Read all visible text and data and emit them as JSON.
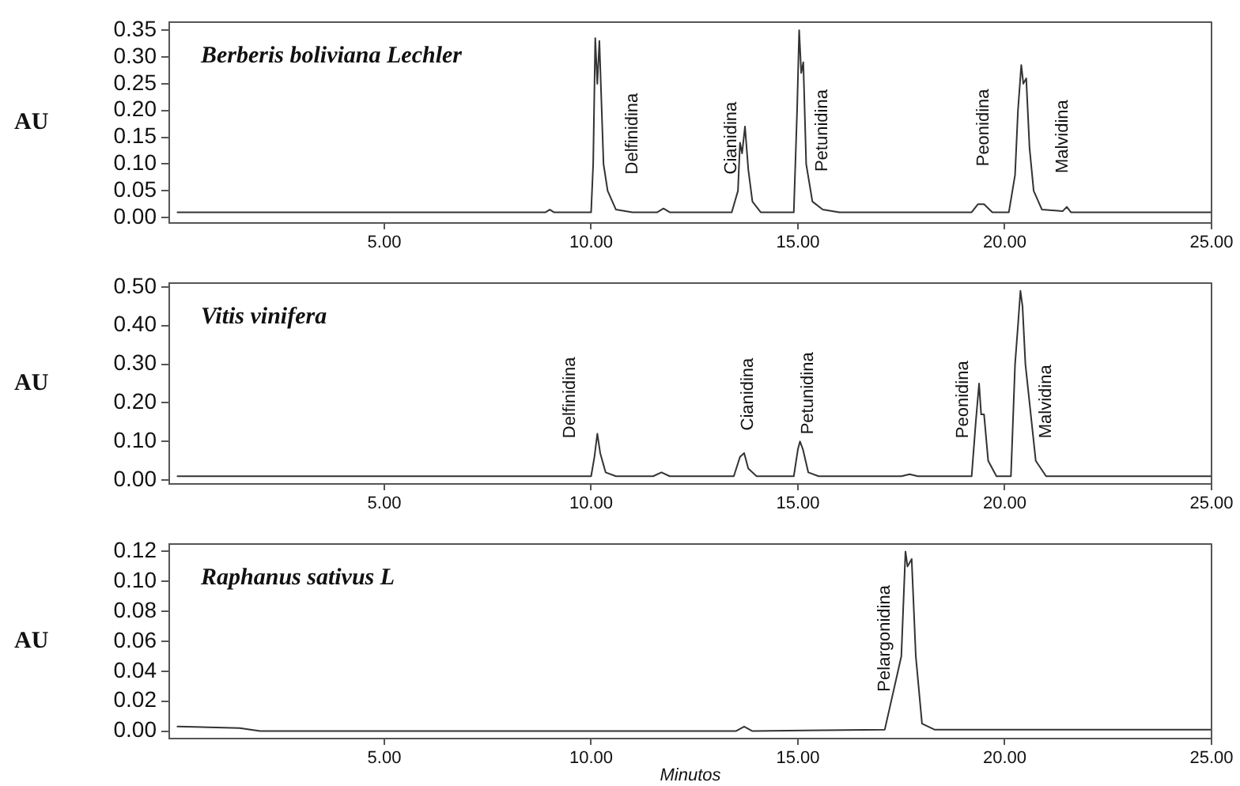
{
  "chart_data": [
    {
      "type": "line",
      "title": "Berberis boliviana Lechler",
      "ylabel": "AU",
      "color": "#333333",
      "marker": "none",
      "line_style": "solid",
      "grid": false,
      "legend": false,
      "x": [
        0,
        8.9,
        9.0,
        9.1,
        10.0,
        10.05,
        10.1,
        10.15,
        10.2,
        10.3,
        10.4,
        10.6,
        11.0,
        11.6,
        11.75,
        11.9,
        13.4,
        13.55,
        13.6,
        13.65,
        13.72,
        13.8,
        13.9,
        14.1,
        14.9,
        14.98,
        15.03,
        15.08,
        15.13,
        15.2,
        15.35,
        15.6,
        16.0,
        19.2,
        19.35,
        19.5,
        19.7,
        20.1,
        20.25,
        20.32,
        20.4,
        20.45,
        20.52,
        20.6,
        20.7,
        20.9,
        21.4,
        21.5,
        21.6,
        25
      ],
      "values": [
        0.01,
        0.01,
        0.015,
        0.01,
        0.01,
        0.1,
        0.335,
        0.25,
        0.33,
        0.1,
        0.05,
        0.015,
        0.01,
        0.01,
        0.017,
        0.01,
        0.01,
        0.05,
        0.14,
        0.12,
        0.17,
        0.09,
        0.03,
        0.01,
        0.01,
        0.2,
        0.35,
        0.27,
        0.29,
        0.1,
        0.03,
        0.015,
        0.01,
        0.01,
        0.025,
        0.025,
        0.01,
        0.01,
        0.08,
        0.2,
        0.285,
        0.25,
        0.26,
        0.13,
        0.05,
        0.015,
        0.012,
        0.02,
        0.01,
        0.01
      ],
      "xlim": [
        -0.2,
        25
      ],
      "ylim": [
        -0.01,
        0.365
      ],
      "xticks": [
        {
          "value": 5,
          "label": "5.00"
        },
        {
          "value": 10,
          "label": "10.00"
        },
        {
          "value": 15,
          "label": "15.00"
        },
        {
          "value": 20,
          "label": "20.00"
        },
        {
          "value": 25,
          "label": "25.00"
        }
      ],
      "yticks": [
        {
          "value": 0,
          "label": "0.00"
        },
        {
          "value": 0.05,
          "label": "0.05"
        },
        {
          "value": 0.1,
          "label": "0.10"
        },
        {
          "value": 0.15,
          "label": "0.15"
        },
        {
          "value": 0.2,
          "label": "0.20"
        },
        {
          "value": 0.25,
          "label": "0.25"
        },
        {
          "value": 0.3,
          "label": "0.30"
        },
        {
          "value": 0.35,
          "label": "0.35"
        }
      ],
      "annotations": [
        {
          "text": "Delfinidina",
          "x": 11.0,
          "y": 0.01
        },
        {
          "text": "Cianidina",
          "x": 13.4,
          "y": 0.01
        },
        {
          "text": "Petunidina",
          "x": 15.6,
          "y": 0.015
        },
        {
          "text": "Peonidina",
          "x": 19.5,
          "y": 0.025
        },
        {
          "text": "Malvidina",
          "x": 21.4,
          "y": 0.012
        }
      ]
    },
    {
      "type": "line",
      "title": "Vitis vinifera",
      "ylabel": "AU",
      "color": "#333333",
      "marker": "none",
      "line_style": "solid",
      "grid": false,
      "legend": false,
      "x": [
        0,
        10.0,
        10.08,
        10.15,
        10.22,
        10.35,
        10.6,
        11.5,
        11.7,
        11.9,
        13.45,
        13.6,
        13.7,
        13.8,
        14.0,
        14.9,
        15.0,
        15.05,
        15.12,
        15.25,
        15.5,
        17.5,
        17.7,
        17.9,
        19.2,
        19.3,
        19.38,
        19.43,
        19.5,
        19.6,
        19.8,
        20.15,
        20.25,
        20.32,
        20.38,
        20.43,
        20.5,
        20.6,
        20.75,
        21.0,
        25
      ],
      "values": [
        0.01,
        0.01,
        0.06,
        0.12,
        0.07,
        0.02,
        0.01,
        0.01,
        0.02,
        0.01,
        0.01,
        0.06,
        0.07,
        0.03,
        0.01,
        0.01,
        0.08,
        0.1,
        0.08,
        0.02,
        0.01,
        0.01,
        0.015,
        0.01,
        0.01,
        0.15,
        0.25,
        0.17,
        0.17,
        0.05,
        0.01,
        0.01,
        0.3,
        0.4,
        0.49,
        0.45,
        0.3,
        0.2,
        0.05,
        0.01,
        0.01
      ],
      "xlim": [
        -0.2,
        25
      ],
      "ylim": [
        -0.01,
        0.51
      ],
      "xticks": [
        {
          "value": 5,
          "label": "5.00"
        },
        {
          "value": 10,
          "label": "10.00"
        },
        {
          "value": 15,
          "label": "15.00"
        },
        {
          "value": 20,
          "label": "20.00"
        },
        {
          "value": 25,
          "label": "25.00"
        }
      ],
      "yticks": [
        {
          "value": 0,
          "label": "0.00"
        },
        {
          "value": 0.1,
          "label": "0.10"
        },
        {
          "value": 0.2,
          "label": "0.20"
        },
        {
          "value": 0.3,
          "label": "0.30"
        },
        {
          "value": 0.4,
          "label": "0.40"
        },
        {
          "value": 0.5,
          "label": "0.50"
        }
      ],
      "annotations": [
        {
          "text": "Delfinidina",
          "x": 9.5,
          "y": 0.01
        },
        {
          "text": "Cianidina",
          "x": 13.8,
          "y": 0.03
        },
        {
          "text": "Petunidina",
          "x": 15.25,
          "y": 0.02
        },
        {
          "text": "Peonidina",
          "x": 19.0,
          "y": 0.01
        },
        {
          "text": "Malvidina",
          "x": 21.0,
          "y": 0.01
        }
      ]
    },
    {
      "type": "line",
      "title": "Raphanus sativus L",
      "ylabel": "AU",
      "xlabel": "Minutos",
      "color": "#333333",
      "marker": "none",
      "line_style": "solid",
      "grid": false,
      "legend": false,
      "x": [
        0,
        1.5,
        2.0,
        13.5,
        13.7,
        13.9,
        17.1,
        17.5,
        17.6,
        17.65,
        17.75,
        17.85,
        18.0,
        18.3,
        25
      ],
      "values": [
        0.003,
        0.002,
        0.0,
        0.0,
        0.003,
        0.0,
        0.001,
        0.05,
        0.12,
        0.11,
        0.115,
        0.05,
        0.005,
        0.001,
        0.001
      ],
      "xlim": [
        -0.2,
        25
      ],
      "ylim": [
        -0.005,
        0.125
      ],
      "xticks": [
        {
          "value": 5,
          "label": "5.00"
        },
        {
          "value": 10,
          "label": "10.00"
        },
        {
          "value": 15,
          "label": "15.00"
        },
        {
          "value": 20,
          "label": "20.00"
        },
        {
          "value": 25,
          "label": "25.00"
        }
      ],
      "yticks": [
        {
          "value": 0,
          "label": "0.00"
        },
        {
          "value": 0.02,
          "label": "0.02"
        },
        {
          "value": 0.04,
          "label": "0.04"
        },
        {
          "value": 0.06,
          "label": "0.06"
        },
        {
          "value": 0.08,
          "label": "0.08"
        },
        {
          "value": 0.1,
          "label": "0.10"
        },
        {
          "value": 0.12,
          "label": "0.12"
        }
      ],
      "annotations": [
        {
          "text": "Pelargonidina",
          "x": 17.1,
          "y": 0.001
        }
      ]
    }
  ]
}
